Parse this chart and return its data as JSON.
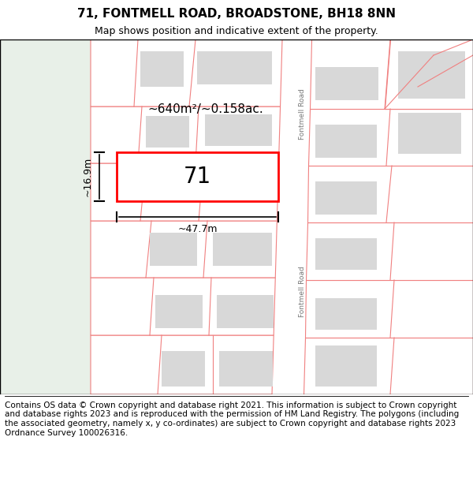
{
  "title": "71, FONTMELL ROAD, BROADSTONE, BH18 8NN",
  "subtitle": "Map shows position and indicative extent of the property.",
  "footer": "Contains OS data © Crown copyright and database right 2021. This information is subject to Crown copyright and database rights 2023 and is reproduced with the permission of HM Land Registry. The polygons (including the associated geometry, namely x, y co-ordinates) are subject to Crown copyright and database rights 2023 Ordnance Survey 100026316.",
  "area_text": "~640m²/~0.158ac.",
  "width_text": "~47.7m",
  "height_text": "~16.9m",
  "plot_label": "71",
  "road_label_1": "Fontmell Road",
  "road_label_2": "Fontmell Road",
  "title_fontsize": 11,
  "subtitle_fontsize": 9,
  "footer_fontsize": 7.5,
  "highlight_color": "#ff0000",
  "road_line_color": "#f08080",
  "building_fill": "#d8d8d8",
  "road_fill": "#ffffff",
  "left_bg": "#e8f0e8",
  "map_bg": "#f5f5f5"
}
